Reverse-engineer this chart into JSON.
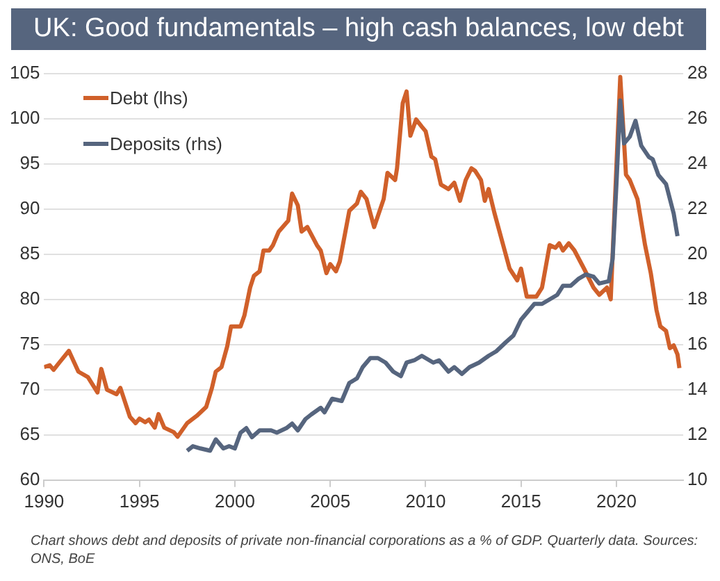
{
  "chart_data": {
    "type": "line",
    "title": "UK: Good fundamentals – high cash balances, low debt",
    "annotations": [
      "Chart shows debt and deposits of private non-financial corporations as a % of GDP. Quarterly data. Sources: ONS, BoE"
    ],
    "xlim": [
      1990,
      2023.5
    ],
    "xticks": [
      1990,
      1995,
      2000,
      2005,
      2010,
      2015,
      2020
    ],
    "ylim": [
      60,
      105
    ],
    "yticks": [
      60,
      65,
      70,
      75,
      80,
      85,
      90,
      95,
      100,
      105
    ],
    "y2lim": [
      10,
      28
    ],
    "y2ticks": [
      10,
      12,
      14,
      16,
      18,
      20,
      22,
      24,
      26,
      28
    ],
    "grid": "y",
    "legend": "top left",
    "marker": "none",
    "line_style": "solid",
    "series": [
      {
        "name": "Debt (lhs)",
        "color": "#d0602a",
        "x": [
          1990.0,
          1990.3,
          1990.5,
          1990.8,
          1991.3,
          1991.8,
          1992.3,
          1992.8,
          1993.0,
          1993.3,
          1993.8,
          1994.0,
          1994.5,
          1994.8,
          1995.0,
          1995.3,
          1995.5,
          1995.8,
          1996.0,
          1996.3,
          1996.8,
          1997.0,
          1997.5,
          1998.0,
          1998.5,
          1998.8,
          1999.0,
          1999.3,
          1999.6,
          1999.8,
          2000.3,
          2000.5,
          2000.8,
          2001.0,
          2001.3,
          2001.5,
          2001.8,
          2002.0,
          2002.3,
          2002.8,
          2003.0,
          2003.3,
          2003.5,
          2003.8,
          2004.3,
          2004.5,
          2004.8,
          2005.0,
          2005.3,
          2005.5,
          2006.0,
          2006.4,
          2006.6,
          2006.9,
          2007.3,
          2007.8,
          2008.0,
          2008.4,
          2008.5,
          2008.8,
          2009.0,
          2009.2,
          2009.5,
          2009.8,
          2010.0,
          2010.3,
          2010.5,
          2010.8,
          2011.2,
          2011.5,
          2011.8,
          2012.1,
          2012.4,
          2012.6,
          2012.9,
          2013.1,
          2013.3,
          2013.6,
          2014.0,
          2014.4,
          2014.8,
          2015.0,
          2015.3,
          2015.8,
          2016.1,
          2016.5,
          2016.8,
          2017.0,
          2017.2,
          2017.5,
          2017.8,
          2018.3,
          2018.8,
          2019.1,
          2019.5,
          2019.7,
          2020.2,
          2020.5,
          2020.7,
          2021.1,
          2021.5,
          2021.8,
          2022.1,
          2022.3,
          2022.6,
          2022.8,
          2023.0,
          2023.2,
          2023.3
        ],
        "values": [
          72.5,
          72.7,
          72.2,
          73,
          74.3,
          72,
          71.4,
          69.7,
          72.3,
          70,
          69.5,
          70.2,
          67,
          66.3,
          66.8,
          66.4,
          66.7,
          65.8,
          67.3,
          65.8,
          65.3,
          64.8,
          66.3,
          67.1,
          68.1,
          70.2,
          72,
          72.5,
          74.8,
          77,
          77,
          78.2,
          81.3,
          82.6,
          83.1,
          85.4,
          85.4,
          86,
          87.5,
          88.7,
          91.7,
          90.4,
          87.5,
          88,
          86,
          85.4,
          82.9,
          83.9,
          83.1,
          84.2,
          89.8,
          90.6,
          91.9,
          91.1,
          88,
          91.1,
          94,
          93.2,
          94.5,
          101.7,
          103,
          98.1,
          99.9,
          99.1,
          98.6,
          95.8,
          95.5,
          92.7,
          92.2,
          92.9,
          90.9,
          93.2,
          94.5,
          94.2,
          93.2,
          90.9,
          92.2,
          89.6,
          86.5,
          83.4,
          82.1,
          83.4,
          80.3,
          80.3,
          81.3,
          86,
          85.7,
          86.2,
          85.4,
          86.2,
          85.4,
          83.4,
          81.3,
          80.5,
          81.3,
          80,
          104.6,
          93.8,
          93.2,
          91.1,
          86,
          82.9,
          78.8,
          77,
          76.5,
          74.6,
          74.9,
          73.9,
          72.4
        ]
      },
      {
        "name": "Deposits (rhs)",
        "color": "#56657e",
        "axis": "y2",
        "x": [
          1997.5,
          1997.8,
          1998.2,
          1998.7,
          1999.0,
          1999.4,
          1999.7,
          2000.0,
          2000.3,
          2000.6,
          2000.9,
          2001.3,
          2001.7,
          2001.9,
          2002.2,
          2002.7,
          2003.0,
          2003.3,
          2003.7,
          2004.0,
          2004.5,
          2004.7,
          2005.1,
          2005.6,
          2006.0,
          2006.4,
          2006.7,
          2007.1,
          2007.5,
          2007.9,
          2008.3,
          2008.7,
          2009.0,
          2009.4,
          2009.8,
          2010.0,
          2010.4,
          2010.7,
          2011.2,
          2011.5,
          2011.9,
          2012.3,
          2012.8,
          2013.3,
          2013.7,
          2014.2,
          2014.6,
          2015.0,
          2015.3,
          2015.7,
          2016.1,
          2016.5,
          2016.9,
          2017.2,
          2017.6,
          2018.0,
          2018.4,
          2018.8,
          2019.1,
          2019.6,
          2019.8,
          2020.0,
          2020.2,
          2020.4,
          2020.7,
          2021.0,
          2021.3,
          2021.7,
          2021.9,
          2022.2,
          2022.6,
          2023.0,
          2023.2
        ],
        "values": [
          11.3,
          11.5,
          11.4,
          11.3,
          11.8,
          11.4,
          11.5,
          11.4,
          12.1,
          12.3,
          11.9,
          12.2,
          12.2,
          12.2,
          12.1,
          12.3,
          12.5,
          12.2,
          12.7,
          12.9,
          13.2,
          13,
          13.6,
          13.5,
          14.3,
          14.5,
          15,
          15.4,
          15.4,
          15.2,
          14.8,
          14.6,
          15.2,
          15.3,
          15.5,
          15.4,
          15.2,
          15.3,
          14.8,
          15,
          14.7,
          15,
          15.2,
          15.5,
          15.7,
          16.1,
          16.4,
          17.1,
          17.4,
          17.8,
          17.8,
          18,
          18.2,
          18.6,
          18.6,
          18.9,
          19.1,
          19,
          18.7,
          18.8,
          19.8,
          23.1,
          26.8,
          24.9,
          25.2,
          25.9,
          24.8,
          24.3,
          24.2,
          23.5,
          23.1,
          21.8,
          20.8
        ]
      }
    ]
  }
}
